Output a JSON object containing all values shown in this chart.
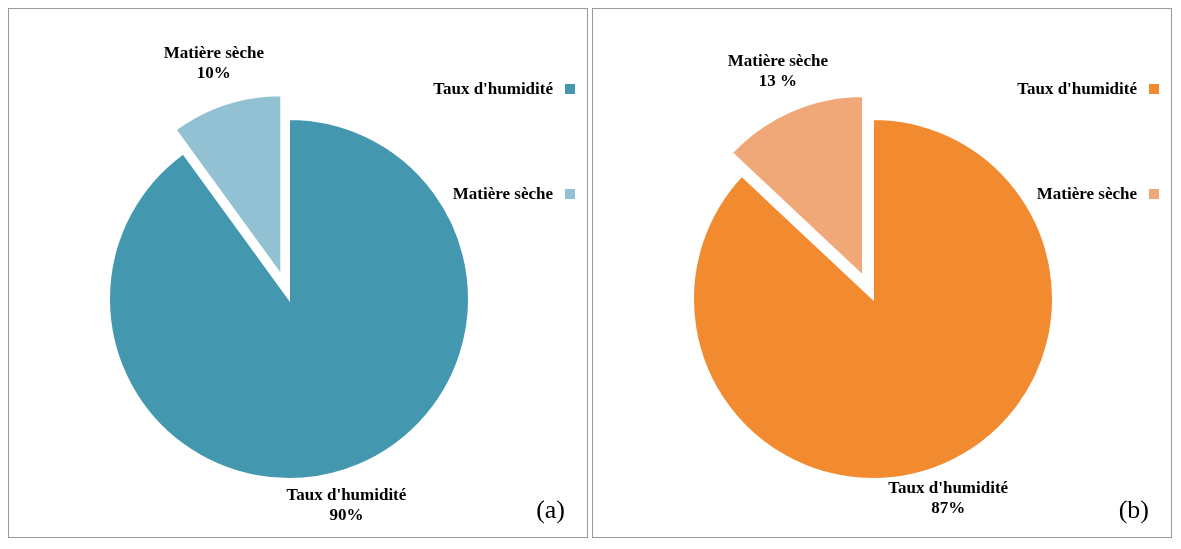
{
  "chart_data": [
    {
      "type": "pie",
      "categories": [
        "Taux d'humidité",
        "Matière sèche"
      ],
      "values": [
        90,
        10
      ],
      "colors": [
        "#4398b0",
        "#92c1d3"
      ],
      "value_labels": [
        "Taux d'humidité 90%",
        "Matière sèche 10%"
      ],
      "legend": "top right",
      "annotations": [
        "(a)"
      ]
    },
    {
      "type": "pie",
      "categories": [
        "Taux d'humidité",
        "Matière sèche"
      ],
      "values": [
        87,
        13
      ],
      "colors": [
        "#f28a30",
        "#f0a878"
      ],
      "value_labels": [
        "Taux d'humidité 87%",
        "Matière sèche 13 %"
      ],
      "legend": "top right",
      "annotations": [
        "(b)"
      ]
    }
  ]
}
